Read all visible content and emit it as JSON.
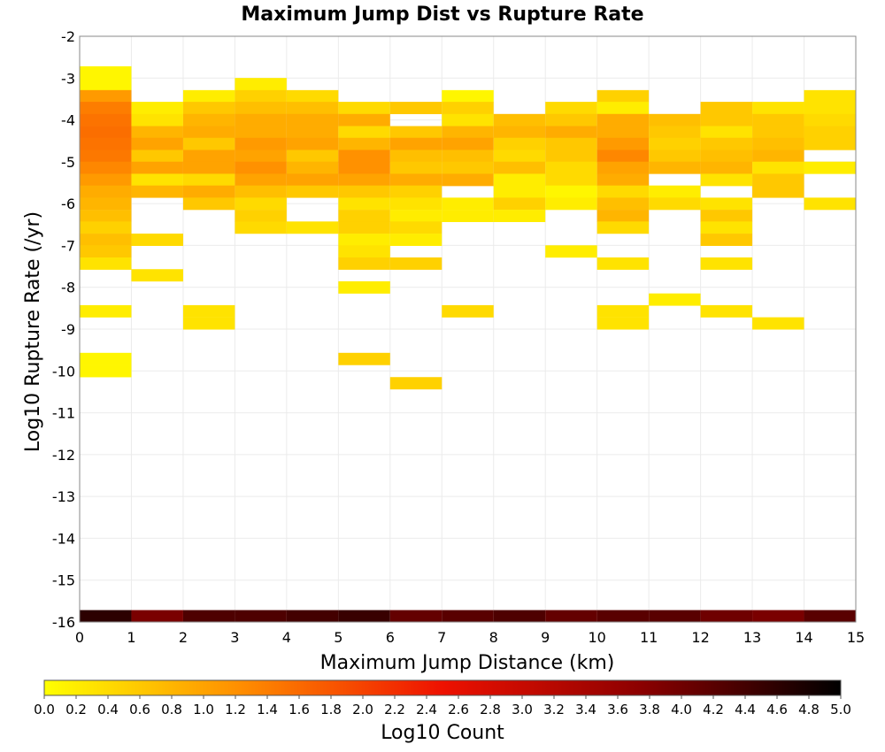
{
  "chart_data": {
    "type": "heatmap",
    "title": "Maximum Jump Dist vs Rupture Rate",
    "xlabel": "Maximum Jump Distance (km)",
    "ylabel": "Log10 Rupture Rate (/yr)",
    "xlim": [
      0,
      15
    ],
    "ylim": [
      -16,
      -2
    ],
    "x_ticks": [
      "0",
      "1",
      "2",
      "3",
      "4",
      "5",
      "6",
      "7",
      "8",
      "9",
      "10",
      "11",
      "12",
      "13",
      "14",
      "15"
    ],
    "y_ticks": [
      "-2",
      "-3",
      "-4",
      "-5",
      "-6",
      "-7",
      "-8",
      "-9",
      "-10",
      "-11",
      "-12",
      "-13",
      "-14",
      "-15",
      "-16"
    ],
    "grid": true,
    "x_bin_width": 1,
    "y_bin_height": 0.286,
    "colorbar": {
      "label": "Log10 Count",
      "range": [
        0,
        5
      ],
      "ticks": [
        "0.0",
        "0.2",
        "0.4",
        "0.6",
        "0.8",
        "1.0",
        "1.2",
        "1.4",
        "1.6",
        "1.8",
        "2.0",
        "2.2",
        "2.4",
        "2.6",
        "2.8",
        "3.0",
        "3.2",
        "3.4",
        "3.6",
        "3.8",
        "4.0",
        "4.2",
        "4.4",
        "4.6",
        "4.8",
        "5.0"
      ],
      "colors": [
        "#ffff00",
        "#ff8c00",
        "#ee1100",
        "#8b0000",
        "#000000"
      ]
    },
    "columns": [
      {
        "x": 0,
        "cells": [
          [
            -2.86,
            0.1
          ],
          [
            -3.14,
            0.1
          ],
          [
            -3.43,
            1.1
          ],
          [
            -3.71,
            1.4
          ],
          [
            -4.0,
            1.5
          ],
          [
            -4.29,
            1.55
          ],
          [
            -4.57,
            1.5
          ],
          [
            -4.86,
            1.45
          ],
          [
            -5.14,
            1.3
          ],
          [
            -5.43,
            1.1
          ],
          [
            -5.71,
            0.9
          ],
          [
            -6.0,
            0.8
          ],
          [
            -6.29,
            0.7
          ],
          [
            -6.57,
            0.5
          ],
          [
            -6.86,
            0.7
          ],
          [
            -7.14,
            0.6
          ],
          [
            -7.43,
            0.3
          ],
          [
            -8.57,
            0.2
          ],
          [
            -9.71,
            0.1
          ],
          [
            -10.0,
            0.1
          ],
          [
            -15.86,
            4.6
          ]
        ]
      },
      {
        "x": 1,
        "cells": [
          [
            -3.71,
            0.2
          ],
          [
            -4.0,
            0.3
          ],
          [
            -4.29,
            0.8
          ],
          [
            -4.57,
            1.0
          ],
          [
            -4.86,
            0.6
          ],
          [
            -5.14,
            1.0
          ],
          [
            -5.43,
            0.3
          ],
          [
            -5.71,
            0.8
          ],
          [
            -6.86,
            0.4
          ],
          [
            -7.71,
            0.3
          ],
          [
            -15.86,
            3.9
          ]
        ]
      },
      {
        "x": 2,
        "cells": [
          [
            -3.43,
            0.2
          ],
          [
            -3.71,
            0.6
          ],
          [
            -4.0,
            0.8
          ],
          [
            -4.29,
            0.9
          ],
          [
            -4.57,
            0.6
          ],
          [
            -4.86,
            1.0
          ],
          [
            -5.14,
            1.0
          ],
          [
            -5.43,
            0.4
          ],
          [
            -5.71,
            0.9
          ],
          [
            -6.0,
            0.6
          ],
          [
            -8.57,
            0.3
          ],
          [
            -8.86,
            0.3
          ],
          [
            -15.86,
            4.3
          ]
        ]
      },
      {
        "x": 3,
        "cells": [
          [
            -3.14,
            0.2
          ],
          [
            -3.43,
            0.5
          ],
          [
            -3.71,
            0.7
          ],
          [
            -4.0,
            0.9
          ],
          [
            -4.29,
            0.9
          ],
          [
            -4.57,
            1.1
          ],
          [
            -4.86,
            1.0
          ],
          [
            -5.14,
            1.2
          ],
          [
            -5.43,
            1.0
          ],
          [
            -5.71,
            0.7
          ],
          [
            -6.0,
            0.4
          ],
          [
            -6.29,
            0.5
          ],
          [
            -6.57,
            0.4
          ],
          [
            -15.86,
            4.3
          ]
        ]
      },
      {
        "x": 4,
        "cells": [
          [
            -3.43,
            0.4
          ],
          [
            -3.71,
            0.7
          ],
          [
            -4.0,
            0.9
          ],
          [
            -4.29,
            0.9
          ],
          [
            -4.57,
            1.0
          ],
          [
            -4.86,
            0.6
          ],
          [
            -5.14,
            0.8
          ],
          [
            -5.43,
            1.0
          ],
          [
            -5.71,
            0.6
          ],
          [
            -6.57,
            0.3
          ],
          [
            -15.86,
            4.4
          ]
        ]
      },
      {
        "x": 5,
        "cells": [
          [
            -3.71,
            0.4
          ],
          [
            -4.0,
            0.9
          ],
          [
            -4.29,
            0.4
          ],
          [
            -4.57,
            0.8
          ],
          [
            -4.86,
            1.2
          ],
          [
            -5.14,
            1.2
          ],
          [
            -5.43,
            1.0
          ],
          [
            -5.71,
            0.6
          ],
          [
            -6.0,
            0.3
          ],
          [
            -6.29,
            0.5
          ],
          [
            -6.57,
            0.5
          ],
          [
            -6.86,
            0.2
          ],
          [
            -7.14,
            0.3
          ],
          [
            -7.43,
            0.5
          ],
          [
            -8.0,
            0.2
          ],
          [
            -9.71,
            0.5
          ],
          [
            -15.86,
            4.5
          ]
        ]
      },
      {
        "x": 6,
        "cells": [
          [
            -3.71,
            0.6
          ],
          [
            -4.29,
            0.6
          ],
          [
            -4.57,
            1.0
          ],
          [
            -4.86,
            0.7
          ],
          [
            -5.14,
            0.6
          ],
          [
            -5.43,
            0.9
          ],
          [
            -5.71,
            0.5
          ],
          [
            -6.0,
            0.3
          ],
          [
            -6.29,
            0.2
          ],
          [
            -6.57,
            0.4
          ],
          [
            -6.86,
            0.2
          ],
          [
            -7.43,
            0.5
          ],
          [
            -10.29,
            0.5
          ],
          [
            -15.86,
            4.1
          ]
        ]
      },
      {
        "x": 7,
        "cells": [
          [
            -3.43,
            0.1
          ],
          [
            -3.71,
            0.5
          ],
          [
            -4.0,
            0.3
          ],
          [
            -4.29,
            0.8
          ],
          [
            -4.57,
            1.0
          ],
          [
            -4.86,
            0.7
          ],
          [
            -5.14,
            0.6
          ],
          [
            -5.43,
            0.9
          ],
          [
            -6.0,
            0.2
          ],
          [
            -6.29,
            0.2
          ],
          [
            -8.57,
            0.4
          ],
          [
            -15.86,
            4.2
          ]
        ]
      },
      {
        "x": 8,
        "cells": [
          [
            -4.0,
            0.7
          ],
          [
            -4.29,
            0.8
          ],
          [
            -4.57,
            0.5
          ],
          [
            -4.86,
            0.4
          ],
          [
            -5.14,
            0.7
          ],
          [
            -5.43,
            0.2
          ],
          [
            -5.71,
            0.2
          ],
          [
            -6.0,
            0.5
          ],
          [
            -6.29,
            0.2
          ],
          [
            -15.86,
            4.3
          ]
        ]
      },
      {
        "x": 9,
        "cells": [
          [
            -3.71,
            0.4
          ],
          [
            -4.0,
            0.6
          ],
          [
            -4.29,
            0.9
          ],
          [
            -4.57,
            0.6
          ],
          [
            -4.86,
            0.6
          ],
          [
            -5.14,
            0.4
          ],
          [
            -5.43,
            0.4
          ],
          [
            -5.71,
            0.1
          ],
          [
            -6.0,
            0.2
          ],
          [
            -7.14,
            0.2
          ],
          [
            -15.86,
            4.1
          ]
        ]
      },
      {
        "x": 10,
        "cells": [
          [
            -3.43,
            0.5
          ],
          [
            -3.71,
            0.2
          ],
          [
            -4.0,
            0.9
          ],
          [
            -4.29,
            0.9
          ],
          [
            -4.57,
            1.1
          ],
          [
            -4.86,
            1.3
          ],
          [
            -5.14,
            1.0
          ],
          [
            -5.43,
            0.9
          ],
          [
            -5.71,
            0.4
          ],
          [
            -6.0,
            0.7
          ],
          [
            -6.29,
            0.8
          ],
          [
            -6.57,
            0.4
          ],
          [
            -7.43,
            0.3
          ],
          [
            -8.57,
            0.3
          ],
          [
            -8.86,
            0.3
          ],
          [
            -15.86,
            4.2
          ]
        ]
      },
      {
        "x": 11,
        "cells": [
          [
            -4.0,
            0.7
          ],
          [
            -4.29,
            0.6
          ],
          [
            -4.57,
            0.5
          ],
          [
            -4.86,
            0.6
          ],
          [
            -5.14,
            0.8
          ],
          [
            -5.71,
            0.2
          ],
          [
            -6.0,
            0.4
          ],
          [
            -8.29,
            0.2
          ],
          [
            -15.86,
            4.2
          ]
        ]
      },
      {
        "x": 12,
        "cells": [
          [
            -3.71,
            0.6
          ],
          [
            -4.0,
            0.6
          ],
          [
            -4.29,
            0.3
          ],
          [
            -4.57,
            0.6
          ],
          [
            -4.86,
            0.7
          ],
          [
            -5.14,
            0.8
          ],
          [
            -5.43,
            0.3
          ],
          [
            -6.0,
            0.3
          ],
          [
            -6.29,
            0.6
          ],
          [
            -6.57,
            0.3
          ],
          [
            -6.86,
            0.6
          ],
          [
            -7.43,
            0.3
          ],
          [
            -8.57,
            0.3
          ],
          [
            -15.86,
            4.0
          ]
        ]
      },
      {
        "x": 13,
        "cells": [
          [
            -3.71,
            0.3
          ],
          [
            -4.0,
            0.6
          ],
          [
            -4.29,
            0.6
          ],
          [
            -4.57,
            0.7
          ],
          [
            -4.86,
            0.8
          ],
          [
            -5.14,
            0.3
          ],
          [
            -5.43,
            0.6
          ],
          [
            -5.71,
            0.6
          ],
          [
            -8.86,
            0.3
          ],
          [
            -15.86,
            3.9
          ]
        ]
      },
      {
        "x": 14,
        "cells": [
          [
            -3.43,
            0.3
          ],
          [
            -3.71,
            0.3
          ],
          [
            -4.0,
            0.4
          ],
          [
            -4.29,
            0.5
          ],
          [
            -4.57,
            0.5
          ],
          [
            -5.14,
            0.2
          ],
          [
            -6.0,
            0.3
          ],
          [
            -15.86,
            4.2
          ]
        ]
      }
    ]
  }
}
